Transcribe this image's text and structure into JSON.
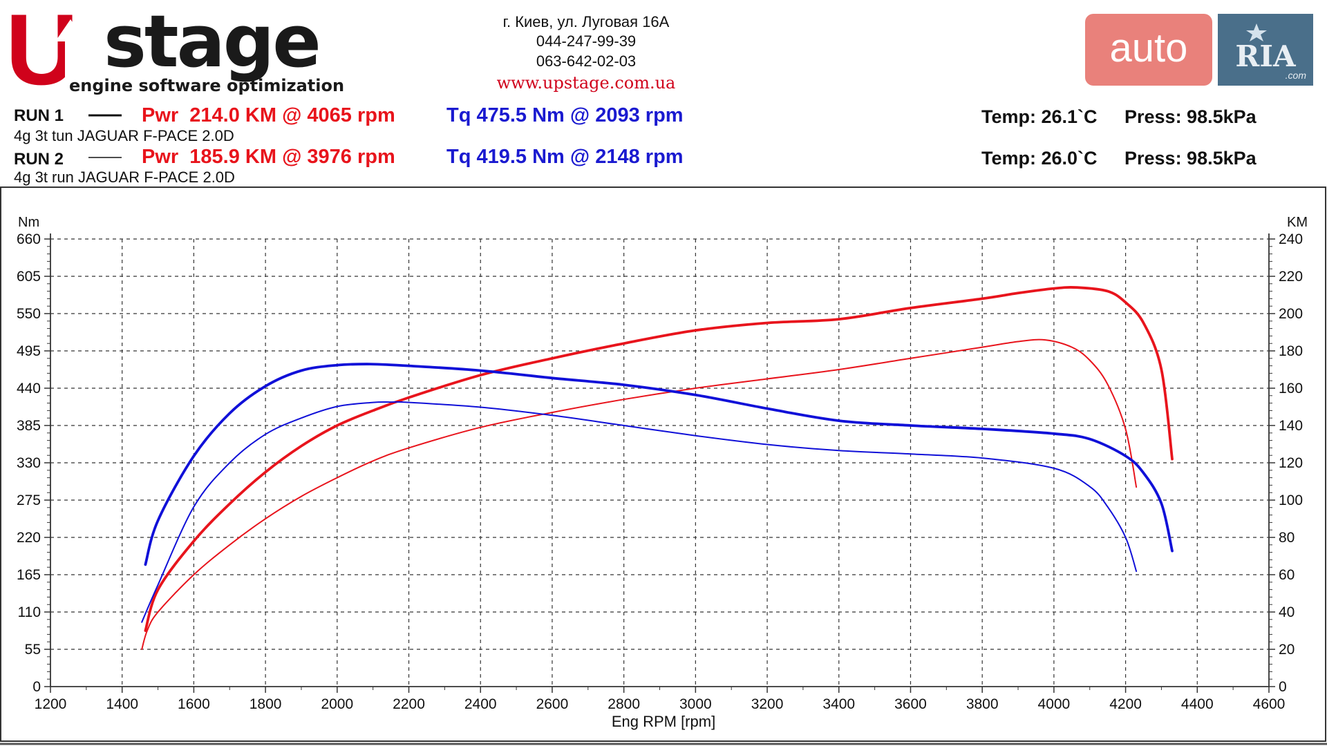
{
  "brand": {
    "logo_u": "U",
    "logo_stage": "stage",
    "logo_tagline": "engine software optimization",
    "address": "г. Киев, ул. Луговая 16А",
    "phone1": "044-247-99-39",
    "phone2": "063-642-02-03",
    "website": "www.upstage.com.ua"
  },
  "watermark": {
    "auto": "auto",
    "ria": "RIA",
    "com": ".com"
  },
  "runs": [
    {
      "label": "RUN 1",
      "desc": "4g 3t tun JAGUAR F-PACE 2.0D",
      "pwr": "Pwr  214.0 KM @ 4065 rpm",
      "tq": "Tq 475.5 Nm @ 2093 rpm",
      "temp": "Temp: 26.1`C",
      "press": "Press: 98.5kPa"
    },
    {
      "label": "RUN 2",
      "desc": "4g 3t run JAGUAR F-PACE 2.0D",
      "pwr": "Pwr  185.9 KM @ 3976 rpm",
      "tq": "Tq 419.5 Nm @ 2148 rpm",
      "temp": "Temp: 26.0`C",
      "press": "Press: 98.5kPa"
    }
  ],
  "colors": {
    "brand_red": "#d0021b",
    "power": "#e8141c",
    "torque": "#1010d8",
    "text_red": "#e8141c",
    "text_blue": "#1a1ad0",
    "auto_bg": "#e9817b",
    "ria_bg": "#4a6f8a"
  },
  "chart_data": {
    "type": "line",
    "xlabel": "Eng RPM [rpm]",
    "ylabel_left": "Nm",
    "ylabel_right": "KM",
    "xlim": [
      1200,
      4600
    ],
    "xticks": [
      1200,
      1400,
      1600,
      1800,
      2000,
      2200,
      2400,
      2600,
      2800,
      3000,
      3200,
      3400,
      3600,
      3800,
      4000,
      4200,
      4400,
      4600
    ],
    "ylim_left": [
      0,
      660
    ],
    "yticks_left": [
      0,
      55,
      110,
      165,
      220,
      275,
      330,
      385,
      440,
      495,
      550,
      605,
      660
    ],
    "ylim_right": [
      0,
      240
    ],
    "yticks_right": [
      0,
      20,
      40,
      60,
      80,
      100,
      120,
      140,
      160,
      180,
      200,
      220,
      240
    ],
    "grid": true,
    "series": [
      {
        "axis": "right",
        "color": "#e8141c",
        "width": 3.8,
        "x": [
          1465,
          1500,
          1600,
          1700,
          1800,
          1900,
          2000,
          2100,
          2200,
          2400,
          2600,
          2800,
          3000,
          3200,
          3400,
          3600,
          3800,
          3900,
          4000,
          4065,
          4150,
          4200,
          4250,
          4300,
          4330
        ],
        "y": [
          30,
          52,
          78,
          98,
          115,
          129,
          140,
          148,
          155,
          167,
          176,
          184,
          191,
          195,
          197,
          203,
          208,
          211,
          213.5,
          214,
          212,
          206,
          195,
          170,
          122
        ]
      },
      {
        "axis": "right",
        "color": "#e8141c",
        "width": 2.0,
        "x": [
          1455,
          1470,
          1500,
          1600,
          1700,
          1800,
          1900,
          2000,
          2100,
          2200,
          2400,
          2600,
          2800,
          3000,
          3200,
          3400,
          3600,
          3800,
          3900,
          3976,
          4050,
          4100,
          4150,
          4200,
          4230
        ],
        "y": [
          20,
          30,
          40,
          60,
          76,
          90,
          102,
          112,
          121,
          128,
          139,
          147,
          154,
          160,
          165,
          170,
          176,
          182,
          185,
          185.9,
          182,
          175,
          162,
          138,
          107
        ]
      },
      {
        "axis": "left",
        "color": "#1010d8",
        "width": 3.8,
        "x": [
          1465,
          1500,
          1600,
          1700,
          1800,
          1900,
          2000,
          2093,
          2200,
          2400,
          2600,
          2800,
          3000,
          3200,
          3400,
          3600,
          3800,
          4000,
          4100,
          4200,
          4250,
          4300,
          4330
        ],
        "y": [
          180,
          245,
          340,
          403,
          443,
          466,
          474,
          475.5,
          473,
          466,
          455,
          445,
          430,
          410,
          392,
          385,
          380,
          373,
          365,
          340,
          315,
          270,
          200
        ]
      },
      {
        "axis": "left",
        "color": "#1010d8",
        "width": 2.0,
        "x": [
          1455,
          1500,
          1600,
          1700,
          1800,
          1900,
          2000,
          2100,
          2148,
          2200,
          2400,
          2600,
          2800,
          3000,
          3200,
          3400,
          3600,
          3800,
          4000,
          4100,
          4150,
          4200,
          4230
        ],
        "y": [
          95,
          150,
          265,
          330,
          372,
          396,
          413,
          419,
          419.5,
          419,
          412,
          400,
          385,
          370,
          357,
          348,
          343,
          337,
          322,
          295,
          265,
          220,
          170
        ]
      }
    ]
  }
}
